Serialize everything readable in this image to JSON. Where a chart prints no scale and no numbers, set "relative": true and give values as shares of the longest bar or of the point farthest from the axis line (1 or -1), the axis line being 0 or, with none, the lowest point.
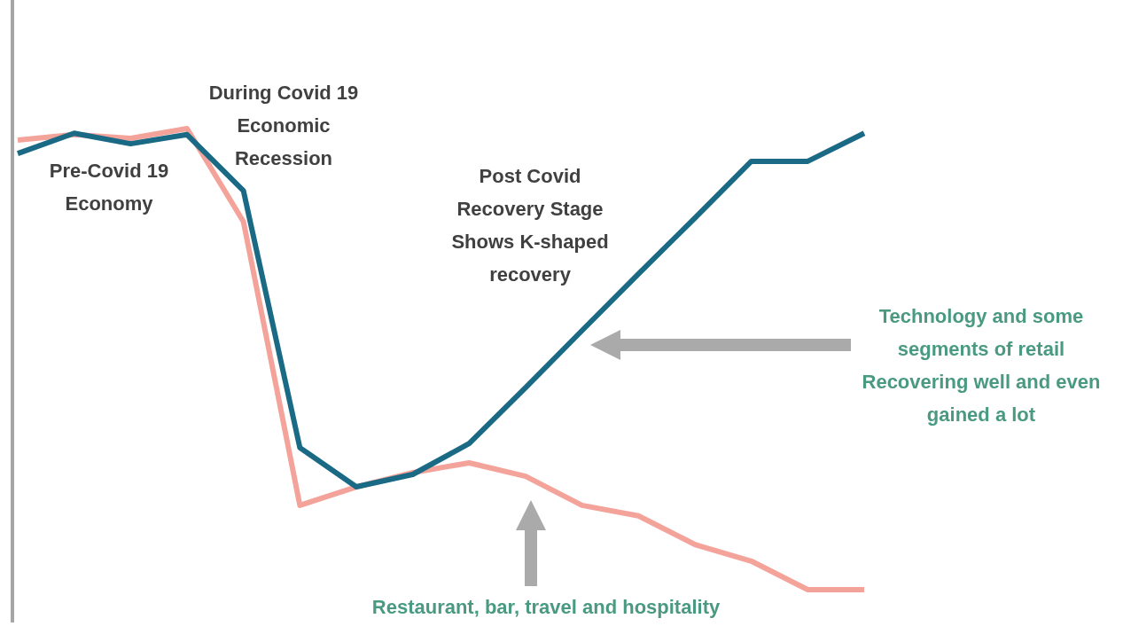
{
  "chart_data": {
    "type": "line",
    "relative": true,
    "marker": "none",
    "line_style": "solid",
    "categories": [
      null,
      null,
      null,
      null,
      null,
      null,
      null,
      null,
      null,
      null,
      null,
      null,
      null,
      null,
      null,
      null
    ],
    "series": [
      {
        "color": "#f4a39a",
        "values": [
          0.975,
          0.987,
          0.979,
          1,
          0.798,
          0.183,
          0.223,
          0.254,
          0.275,
          0.246,
          0.183,
          0.16,
          0.098,
          0.062,
          0,
          0
        ]
      },
      {
        "color": "#1b6a85",
        "values": [
          0.946,
          0.99,
          0.967,
          0.987,
          0.865,
          0.308,
          0.223,
          0.25,
          0.317,
          0.438,
          0.562,
          0.685,
          0.806,
          0.929,
          0.929,
          0.99
        ]
      }
    ],
    "annotations": [
      "During Covid 19\nEconomic\nRecession",
      "Pre-Covid 19\nEconomy",
      "Post Covid\nRecovery Stage\nShows K-shaped\nrecovery",
      "Technology and some\nsegments of retail\nRecovering well and even\ngained a lot",
      "Restaurant, bar, travel and hospitality"
    ]
  }
}
